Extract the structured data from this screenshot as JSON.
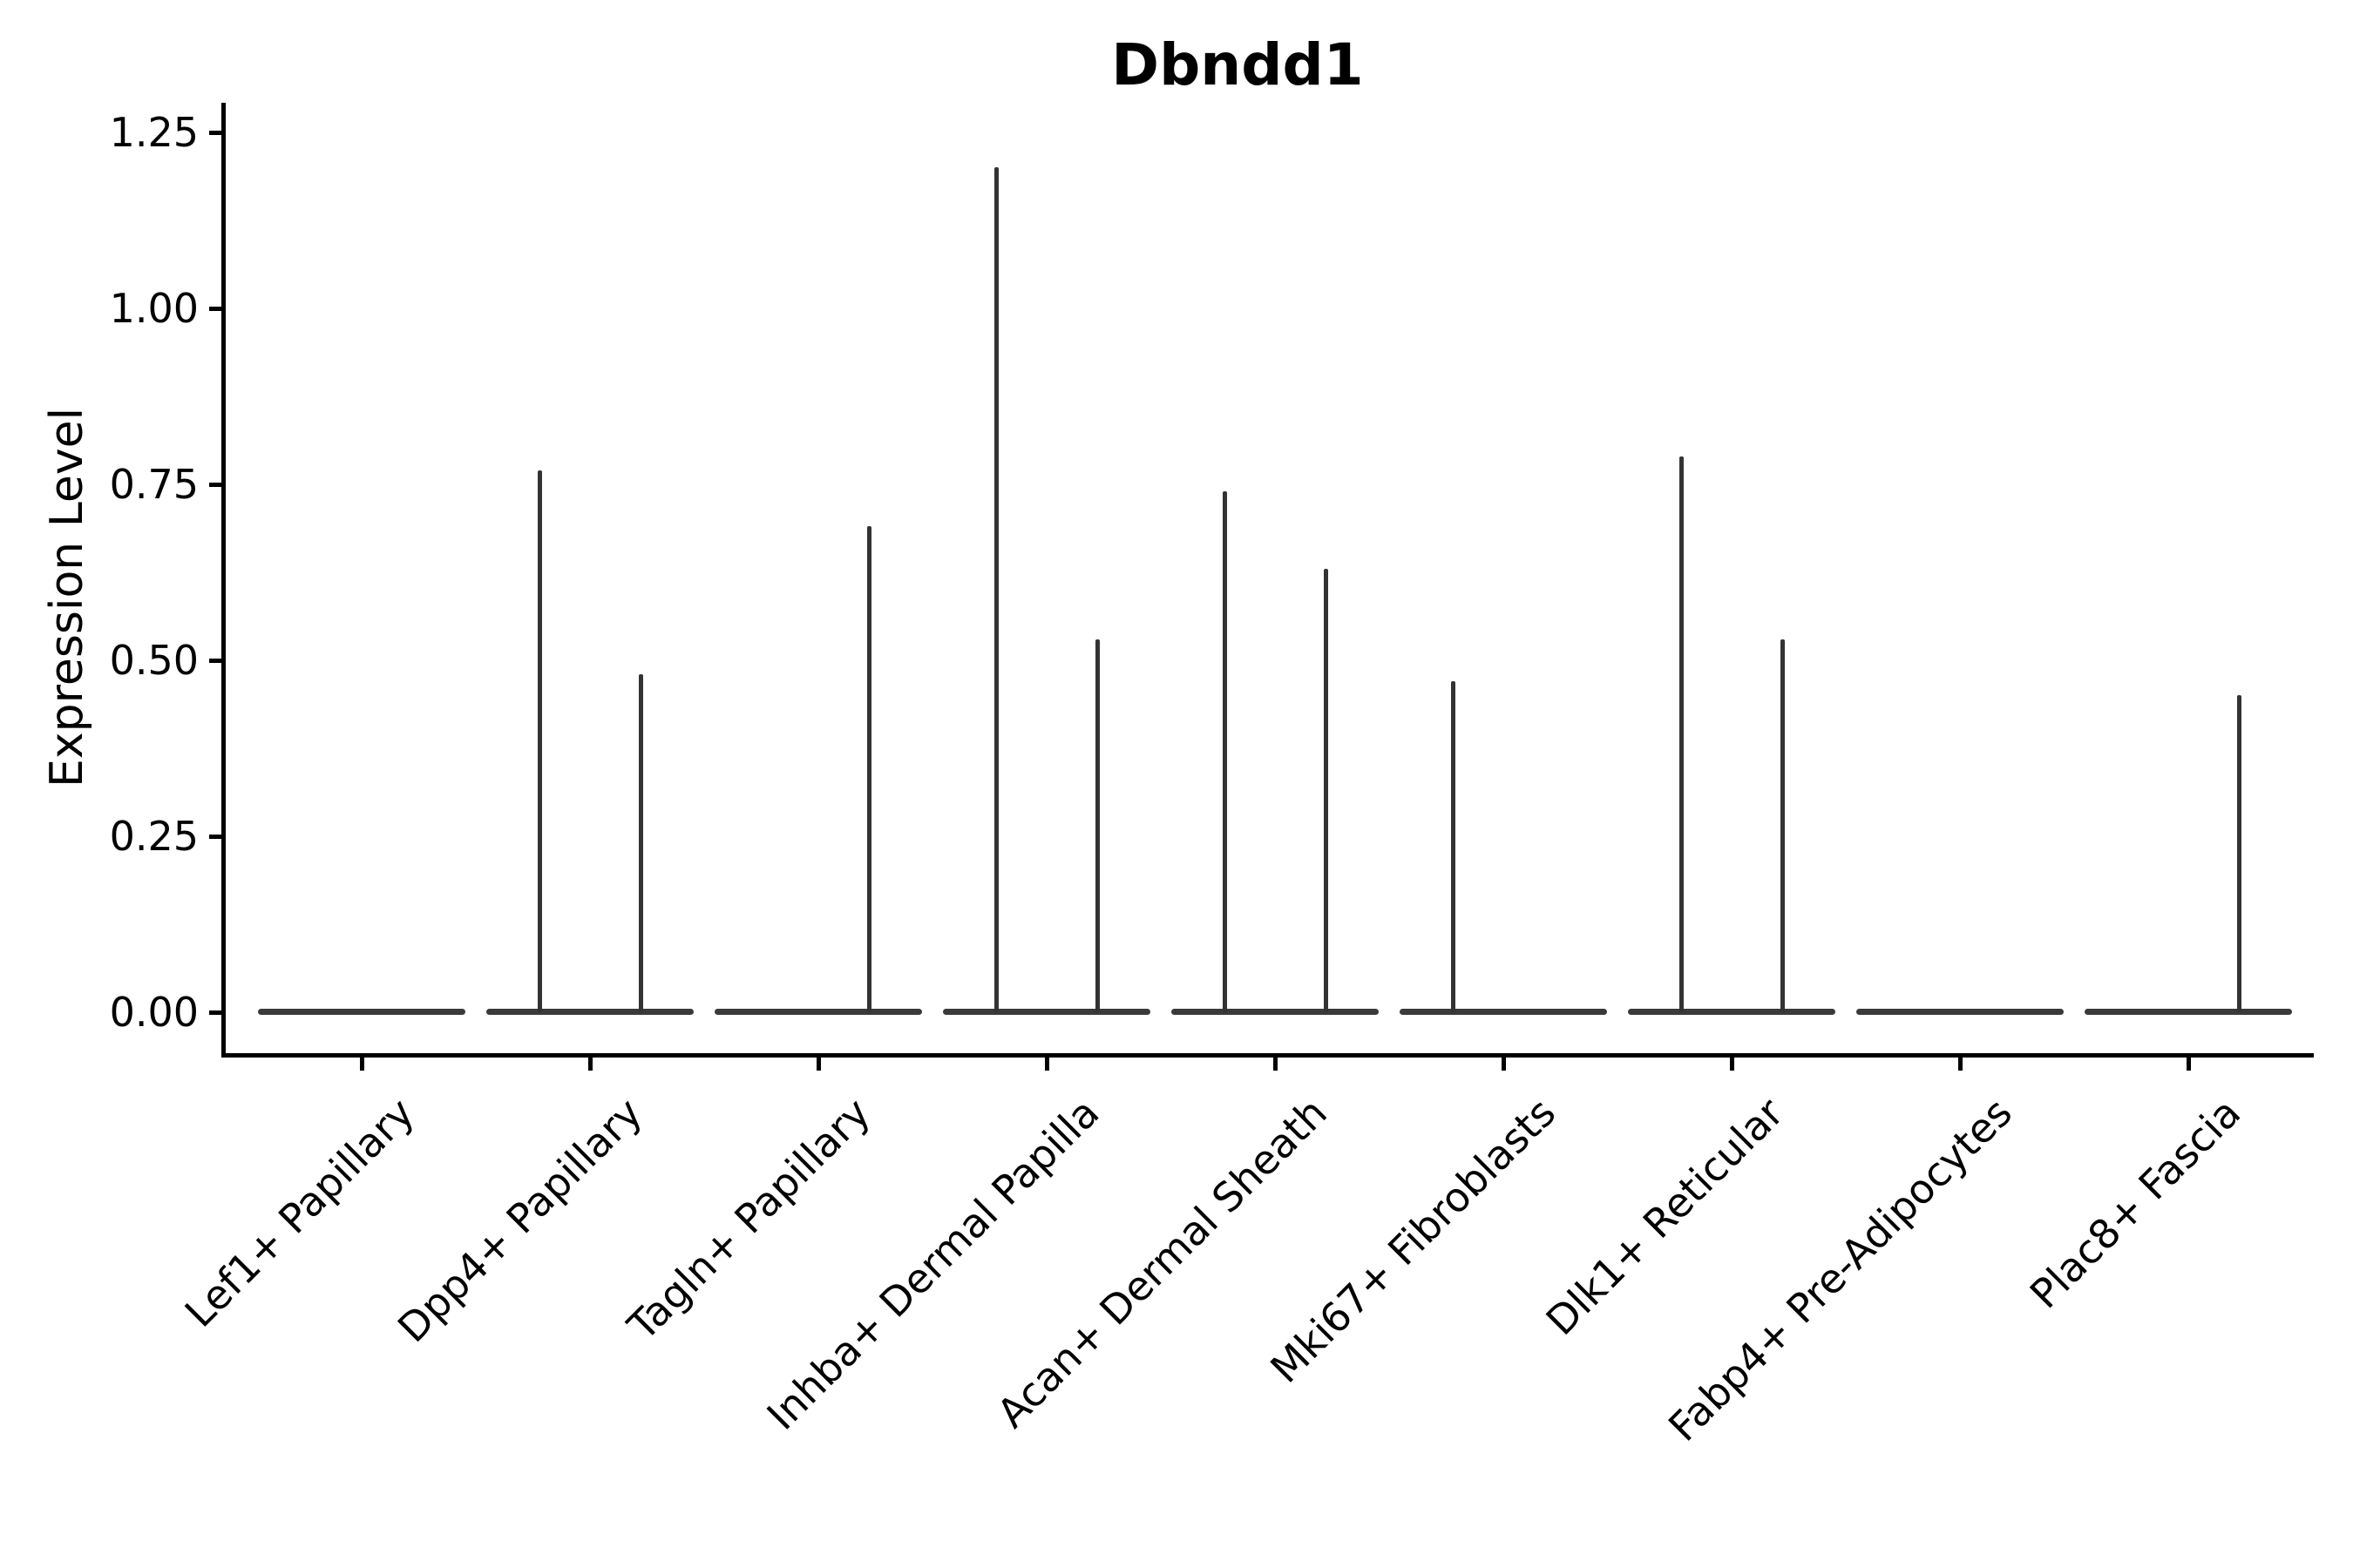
{
  "figure": {
    "title": "Dbndd1",
    "ylabel": "Expression Level"
  },
  "chart_data": {
    "type": "violin",
    "title": "Dbndd1",
    "xlabel": "",
    "ylabel": "Expression Level",
    "grid": false,
    "legend_position": "none",
    "ylim": [
      -0.06,
      1.29
    ],
    "yticks": [
      0.0,
      0.25,
      0.5,
      0.75,
      1.0,
      1.25
    ],
    "ytick_labels": [
      "0.00",
      "0.25",
      "0.50",
      "0.75",
      "1.00",
      "1.25"
    ],
    "categories": [
      "Lef1+ Papillary",
      "Dpp4+ Papillary",
      "Tagln+ Papillary",
      "Inhba+ Dermal Papilla",
      "Acan+ Dermal Sheath",
      "Mki67+ Fibroblasts",
      "Dlk1+ Reticular",
      "Fabp4+ Pre-Adipocytes",
      "Plac8+ Fascia"
    ],
    "description": "Seurat-style violin plot; nearly all density at 0 (flat base line per category) with thin needle-like tails rising to the max expression value. Some categories show two needles (left/right dodged sub-violins).",
    "series": [
      {
        "category": "Lef1+ Papillary",
        "baseline": 0,
        "needles": []
      },
      {
        "category": "Dpp4+ Papillary",
        "baseline": 0,
        "needles": [
          {
            "side": "left",
            "max": 0.77
          },
          {
            "side": "right",
            "max": 0.48
          }
        ]
      },
      {
        "category": "Tagln+ Papillary",
        "baseline": 0,
        "needles": [
          {
            "side": "right",
            "max": 0.69
          }
        ]
      },
      {
        "category": "Inhba+ Dermal Papilla",
        "baseline": 0,
        "needles": [
          {
            "side": "left",
            "max": 1.2
          },
          {
            "side": "right",
            "max": 0.53
          }
        ]
      },
      {
        "category": "Acan+ Dermal Sheath",
        "baseline": 0,
        "needles": [
          {
            "side": "left",
            "max": 0.74
          },
          {
            "side": "right",
            "max": 0.63
          }
        ]
      },
      {
        "category": "Mki67+ Fibroblasts",
        "baseline": 0,
        "needles": [
          {
            "side": "left",
            "max": 0.47
          }
        ]
      },
      {
        "category": "Dlk1+ Reticular",
        "baseline": 0,
        "needles": [
          {
            "side": "left",
            "max": 0.79
          },
          {
            "side": "right",
            "max": 0.53
          }
        ]
      },
      {
        "category": "Fabp4+ Pre-Adipocytes",
        "baseline": 0,
        "needles": []
      },
      {
        "category": "Plac8+ Fascia",
        "baseline": 0,
        "needles": [
          {
            "side": "right",
            "max": 0.45
          }
        ]
      }
    ],
    "colors": {
      "violin": "#333333",
      "violin_base": "#3a3a3a",
      "axis": "#000000",
      "text": "#000000",
      "background": "#ffffff"
    }
  }
}
